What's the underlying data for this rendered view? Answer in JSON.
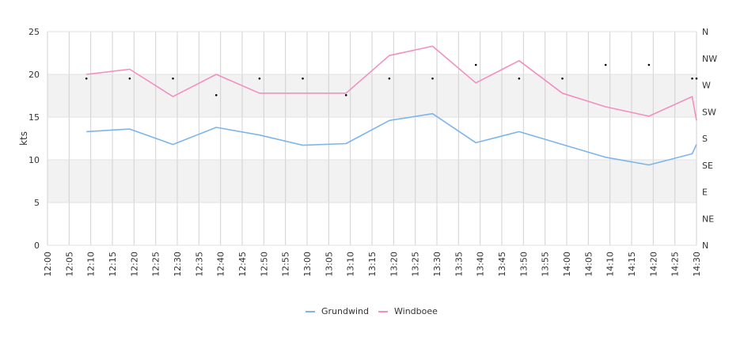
{
  "chart_data": {
    "type": "line",
    "ylabel": "kts",
    "ylim": [
      0,
      25
    ],
    "y_ticks": [
      "0",
      "5",
      "10",
      "15",
      "20",
      "25"
    ],
    "x_ticks": [
      "12:00",
      "12:05",
      "12:10",
      "12:15",
      "12:20",
      "12:25",
      "12:30",
      "12:35",
      "12:40",
      "12:45",
      "12:50",
      "12:55",
      "13:00",
      "13:05",
      "13:10",
      "13:15",
      "13:20",
      "13:25",
      "13:30",
      "13:35",
      "13:40",
      "13:45",
      "13:50",
      "13:55",
      "14:00",
      "14:05",
      "14:10",
      "14:15",
      "14:20",
      "14:25",
      "14:30"
    ],
    "direction_axis": {
      "labels": [
        "N",
        "NE",
        "E",
        "SE",
        "S",
        "SW",
        "W",
        "NW",
        "N"
      ],
      "range_degrees": [
        0,
        360
      ]
    },
    "grid": true,
    "legend_position": "bottom",
    "series": [
      {
        "name": "Grundwind",
        "color": "#7cb5ec",
        "points": [
          [
            "12:09",
            13.3
          ],
          [
            "12:19",
            13.6
          ],
          [
            "12:29",
            11.8
          ],
          [
            "12:39",
            13.8
          ],
          [
            "12:49",
            12.9
          ],
          [
            "12:59",
            11.7
          ],
          [
            "13:09",
            11.9
          ],
          [
            "13:19",
            14.6
          ],
          [
            "13:29",
            15.4
          ],
          [
            "13:39",
            12.0
          ],
          [
            "13:49",
            13.3
          ],
          [
            "13:59",
            11.8
          ],
          [
            "14:09",
            10.3
          ],
          [
            "14:19",
            9.4
          ],
          [
            "14:29",
            10.7
          ],
          [
            "14:30",
            11.8
          ]
        ]
      },
      {
        "name": "Windboee",
        "color": "#f28fc0",
        "points": [
          [
            "12:09",
            20.0
          ],
          [
            "12:19",
            20.6
          ],
          [
            "12:29",
            17.4
          ],
          [
            "12:39",
            20.0
          ],
          [
            "12:49",
            17.8
          ],
          [
            "12:59",
            17.8
          ],
          [
            "13:09",
            17.8
          ],
          [
            "13:19",
            22.2
          ],
          [
            "13:29",
            23.3
          ],
          [
            "13:39",
            19.0
          ],
          [
            "13:49",
            21.6
          ],
          [
            "13:59",
            17.8
          ],
          [
            "14:09",
            16.2
          ],
          [
            "14:19",
            15.1
          ],
          [
            "14:29",
            17.4
          ],
          [
            "14:30",
            14.6
          ]
        ]
      },
      {
        "name": "Direction",
        "color": "#000000",
        "points": [
          [
            "12:09",
            281
          ],
          [
            "12:19",
            281
          ],
          [
            "12:29",
            281
          ],
          [
            "12:39",
            253
          ],
          [
            "12:49",
            281
          ],
          [
            "12:59",
            281
          ],
          [
            "13:09",
            253
          ],
          [
            "13:19",
            281
          ],
          [
            "13:29",
            281
          ],
          [
            "13:39",
            304
          ],
          [
            "13:49",
            281
          ],
          [
            "13:59",
            281
          ],
          [
            "14:09",
            304
          ],
          [
            "14:19",
            304
          ],
          [
            "14:29",
            281
          ],
          [
            "14:30",
            281
          ]
        ]
      }
    ],
    "bands": [
      {
        "from": 5,
        "to": 10,
        "color": "#f2f2f2"
      },
      {
        "from": 15,
        "to": 20,
        "color": "#f2f2f2"
      }
    ]
  }
}
